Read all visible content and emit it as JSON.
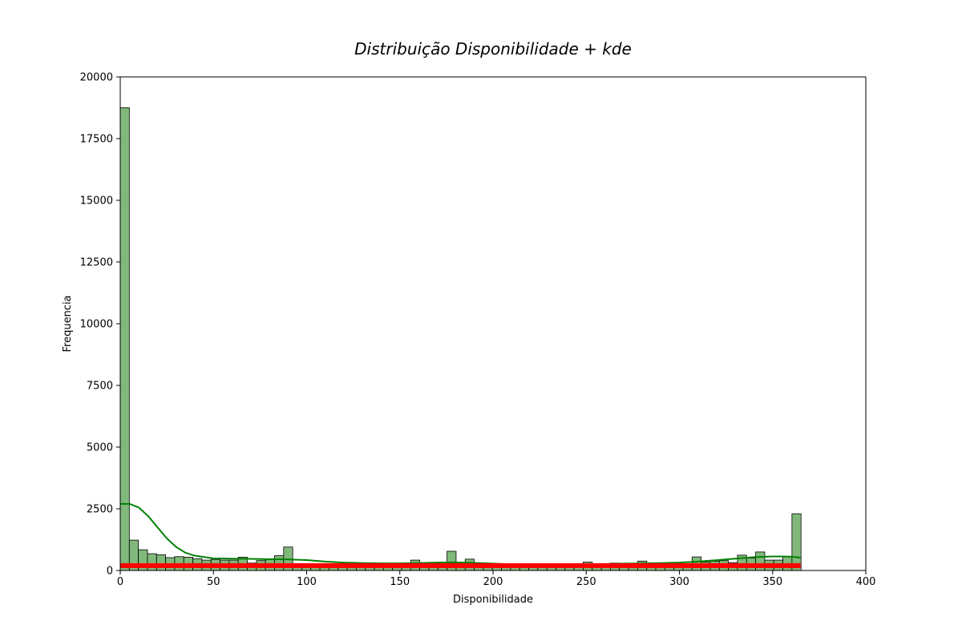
{
  "chart_data": {
    "type": "bar",
    "title": "Distribuição Disponibilidade + kde",
    "xlabel": "Disponibilidade",
    "ylabel": "Frequencia",
    "xlim": [
      0,
      400
    ],
    "ylim": [
      0,
      20000
    ],
    "xticks": [
      0,
      50,
      100,
      150,
      200,
      250,
      300,
      350,
      400
    ],
    "yticks": [
      0,
      2500,
      5000,
      7500,
      10000,
      12500,
      15000,
      17500,
      20000
    ],
    "grid": false,
    "bin_width": 4.87,
    "bin_start": 0,
    "values": [
      18750,
      1230,
      840,
      680,
      640,
      520,
      560,
      540,
      480,
      420,
      450,
      420,
      420,
      540,
      300,
      400,
      440,
      600,
      950,
      260,
      220,
      180,
      160,
      140,
      200,
      260,
      260,
      230,
      220,
      170,
      220,
      260,
      420,
      260,
      300,
      320,
      780,
      260,
      460,
      200,
      180,
      170,
      160,
      150,
      150,
      160,
      150,
      160,
      180,
      200,
      220,
      340,
      260,
      280,
      300,
      280,
      260,
      380,
      280,
      200,
      300,
      280,
      260,
      550,
      340,
      380,
      400,
      320,
      620,
      500,
      750,
      420,
      420,
      560,
      2300
    ],
    "bar_color": "#81b97b",
    "bar_edge_color": "#000000",
    "kde": {
      "color": "#008000",
      "x": [
        0,
        5,
        10,
        15,
        20,
        25,
        30,
        35,
        40,
        50,
        60,
        70,
        80,
        90,
        100,
        110,
        120,
        130,
        140,
        150,
        160,
        170,
        180,
        190,
        200,
        210,
        220,
        230,
        240,
        250,
        260,
        270,
        280,
        290,
        300,
        310,
        320,
        330,
        340,
        350,
        355,
        360,
        365
      ],
      "y": [
        2700,
        2700,
        2550,
        2200,
        1750,
        1300,
        950,
        720,
        600,
        490,
        480,
        470,
        460,
        450,
        420,
        360,
        320,
        300,
        290,
        290,
        300,
        320,
        330,
        310,
        280,
        250,
        230,
        220,
        220,
        240,
        260,
        280,
        290,
        300,
        320,
        360,
        420,
        480,
        540,
        570,
        570,
        560,
        520
      ]
    },
    "rug": {
      "color": "#ff0000",
      "x_range": [
        0,
        365
      ],
      "y_value": 100
    }
  }
}
